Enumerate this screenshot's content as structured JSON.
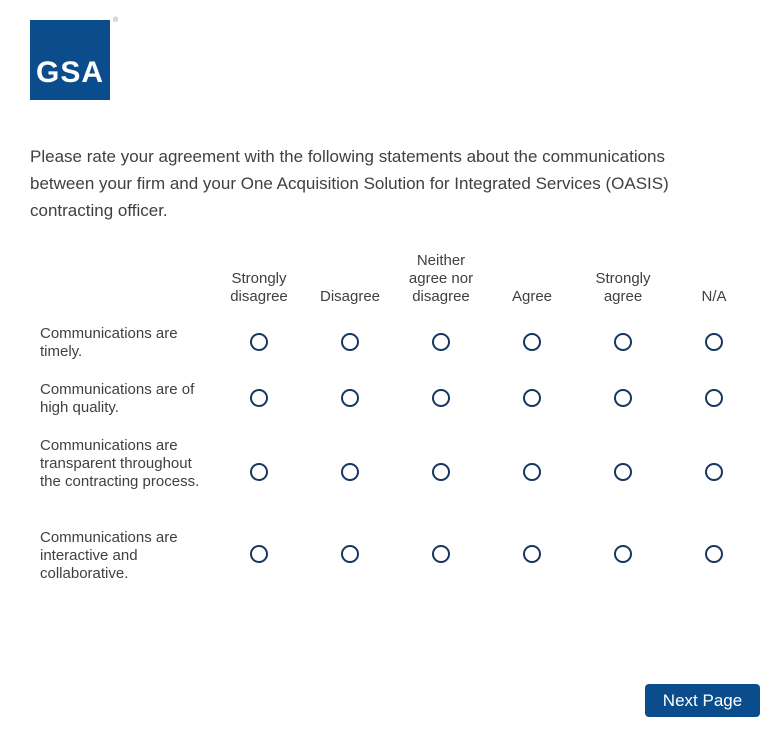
{
  "logo": {
    "text": "GSA",
    "registered": "®"
  },
  "question": "Please rate your agreement with the following statements about the communications between your firm and your One Acquisition Solution for Integrated Services (OASIS) contracting officer.",
  "columns": [
    "Strongly disagree",
    "Disagree",
    "Neither agree nor disagree",
    "Agree",
    "Strongly agree",
    "N/A"
  ],
  "rows": [
    "Communications are timely.",
    "Communications are of high quality.",
    "Communications are transparent throughout the contracting process.",
    "Communications are interactive and collaborative."
  ],
  "next_label": "Next Page",
  "colors": {
    "brand": "#0b4d8c",
    "radio": "#17365f"
  }
}
